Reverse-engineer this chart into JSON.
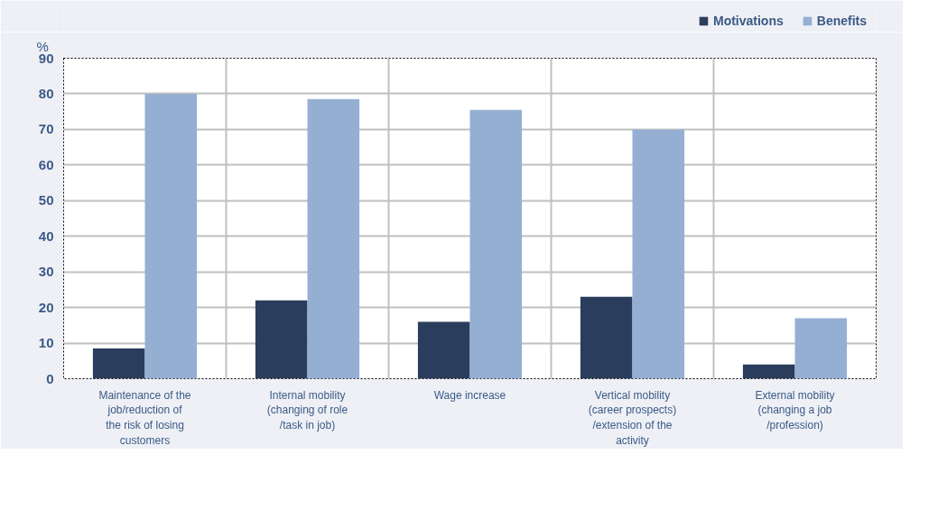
{
  "chart_data": {
    "type": "bar",
    "ylabel": "%",
    "categories": [
      "Maintenance of the job/reduction of the risk of losing customers",
      "Internal mobility (changing of role /task in job)",
      "Wage increase",
      "Vertical mobility (career prospects) /extension of the activity",
      "External mobility (changing a job /profession)"
    ],
    "series": [
      {
        "name": "Motivations",
        "color": "#2b3d5c",
        "values": [
          8.5,
          22,
          16,
          23,
          4
        ]
      },
      {
        "name": "Benefits",
        "color": "#95afd3",
        "values": [
          80,
          78.5,
          75.5,
          70,
          17
        ]
      }
    ],
    "ylim": [
      0,
      90
    ],
    "yticks": [
      0,
      10,
      20,
      30,
      40,
      50,
      60,
      70,
      80,
      90
    ],
    "grid": true,
    "legend": "top right"
  }
}
